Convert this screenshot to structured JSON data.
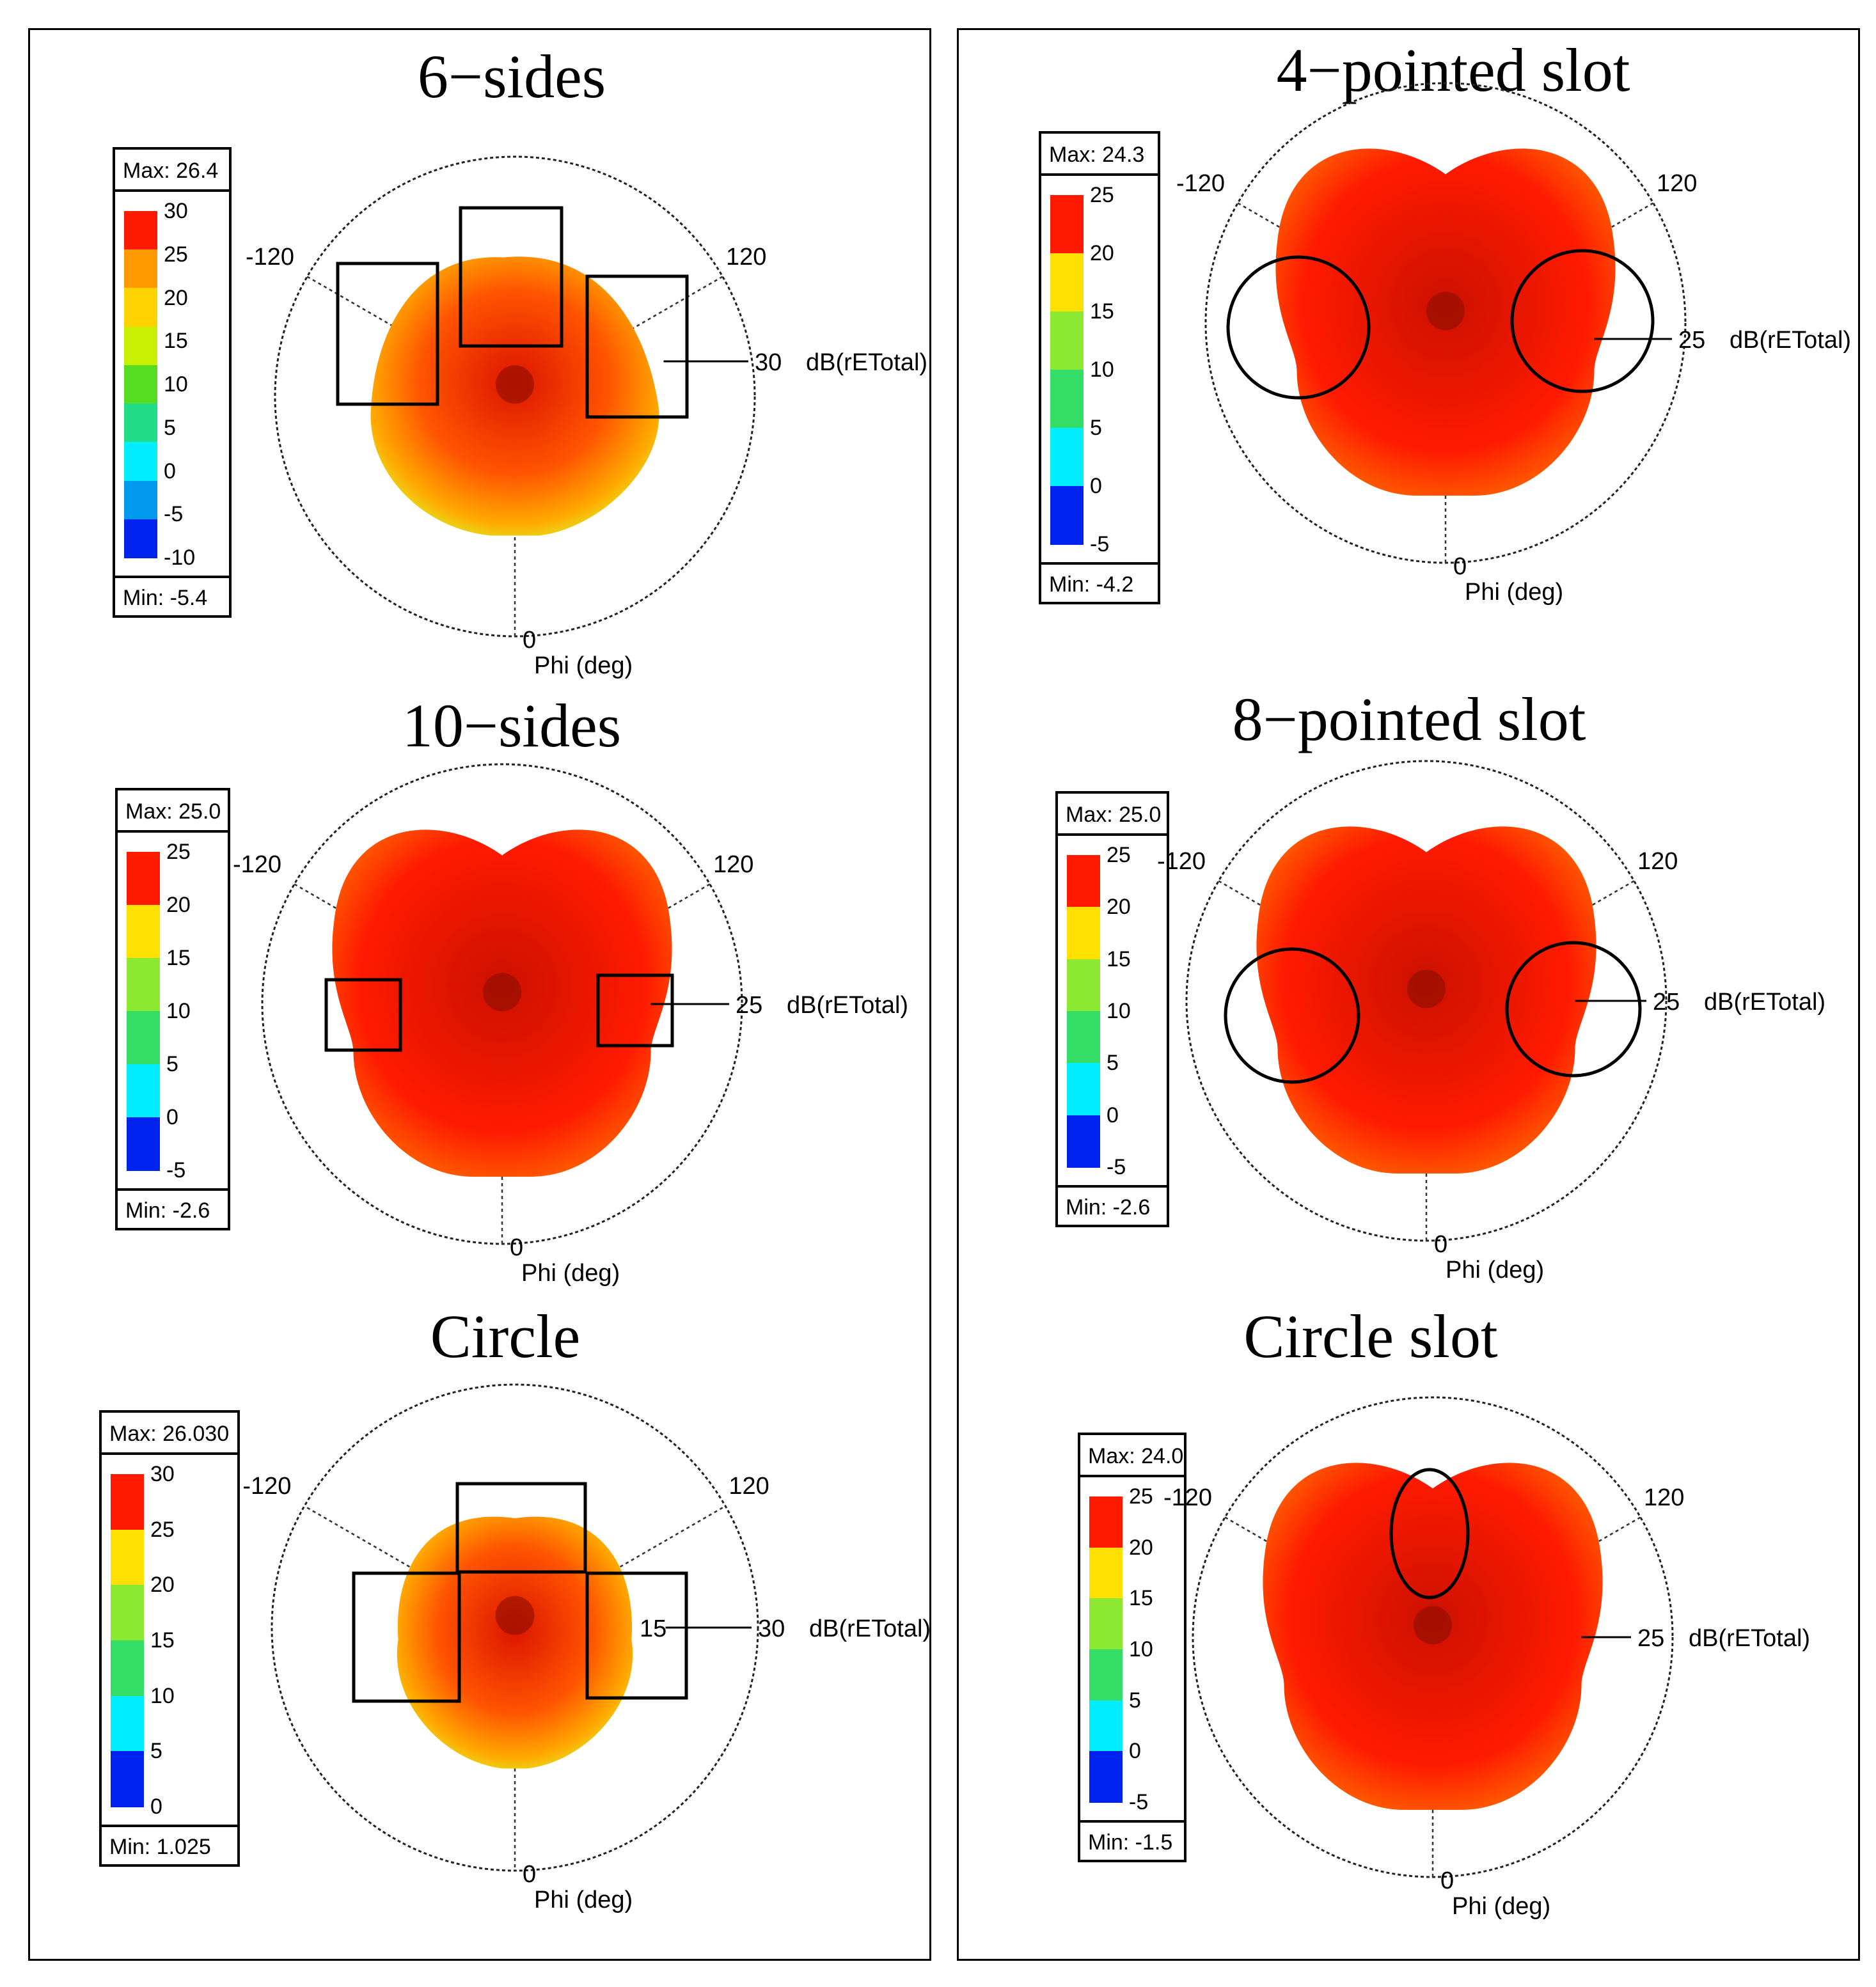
{
  "chart_data": [
    {
      "type": "polar-3d-pattern",
      "title": "6−sides",
      "legend": {
        "max_label": "Max: 26.4",
        "min_label": "Min: -5.4",
        "ticks": [
          "30",
          "25",
          "20",
          "15",
          "10",
          "5",
          "0",
          "-5",
          "-10"
        ],
        "colors": [
          "#ff1a00",
          "#ff9900",
          "#ffd200",
          "#c8f000",
          "#55dd22",
          "#22dd88",
          "#00eeff",
          "#0099ee",
          "#0022ee"
        ]
      },
      "angle_labels": [
        "-120",
        "120",
        "0"
      ],
      "radial_labels": [
        "30"
      ],
      "quantity_label": "dB(rETotal)",
      "axis_label": "Phi (deg)",
      "highlight": "rectangles",
      "pattern": "hex"
    },
    {
      "type": "polar-3d-pattern",
      "title": "4−pointed slot",
      "legend": {
        "max_label": "Max: 24.3",
        "min_label": "Min: -4.2",
        "ticks": [
          "25",
          "20",
          "15",
          "10",
          "5",
          "0",
          "-5"
        ],
        "colors": [
          "#ff1a00",
          "#ffe000",
          "#8ce830",
          "#33dd66",
          "#00eeff",
          "#0022ee"
        ]
      },
      "angle_labels": [
        "-120",
        "120",
        "0"
      ],
      "radial_labels": [
        "25"
      ],
      "quantity_label": "dB(rETotal)",
      "axis_label": "Phi (deg)",
      "highlight": "circles",
      "pattern": "slot4"
    },
    {
      "type": "polar-3d-pattern",
      "title": "10−sides",
      "legend": {
        "max_label": "Max: 25.0",
        "min_label": "Min: -2.6",
        "ticks": [
          "25",
          "20",
          "15",
          "10",
          "5",
          "0",
          "-5"
        ],
        "colors": [
          "#ff1a00",
          "#ffe000",
          "#8ce830",
          "#33dd66",
          "#00eeff",
          "#0022ee"
        ]
      },
      "angle_labels": [
        "-120",
        "120",
        "0"
      ],
      "radial_labels": [
        "25"
      ],
      "quantity_label": "dB(rETotal)",
      "axis_label": "Phi (deg)",
      "highlight": "rectangles",
      "pattern": "deca"
    },
    {
      "type": "polar-3d-pattern",
      "title": "8−pointed slot",
      "legend": {
        "max_label": "Max: 25.0",
        "min_label": "Min: -2.6",
        "ticks": [
          "25",
          "20",
          "15",
          "10",
          "5",
          "0",
          "-5"
        ],
        "colors": [
          "#ff1a00",
          "#ffe000",
          "#8ce830",
          "#33dd66",
          "#00eeff",
          "#0022ee"
        ]
      },
      "angle_labels": [
        "-120",
        "120",
        "0"
      ],
      "radial_labels": [
        "25"
      ],
      "quantity_label": "dB(rETotal)",
      "axis_label": "Phi (deg)",
      "highlight": "circles",
      "pattern": "slot8"
    },
    {
      "type": "polar-3d-pattern",
      "title": "Circle",
      "legend": {
        "max_label": "Max: 26.030",
        "min_label": "Min: 1.025",
        "ticks": [
          "30",
          "25",
          "20",
          "15",
          "10",
          "5",
          "0"
        ],
        "colors": [
          "#ff1a00",
          "#ffe000",
          "#8ce830",
          "#33dd66",
          "#00eeff",
          "#0022ee"
        ]
      },
      "angle_labels": [
        "-120",
        "120",
        "0"
      ],
      "radial_labels": [
        "15",
        "30"
      ],
      "quantity_label": "dB(rETotal)",
      "axis_label": "Phi (deg)",
      "highlight": "rectangles",
      "pattern": "circle"
    },
    {
      "type": "polar-3d-pattern",
      "title": "Circle slot",
      "legend": {
        "max_label": "Max: 24.0",
        "min_label": "Min: -1.5",
        "ticks": [
          "25",
          "20",
          "15",
          "10",
          "5",
          "0",
          "-5"
        ],
        "colors": [
          "#ff1a00",
          "#ffe000",
          "#8ce830",
          "#33dd66",
          "#00eeff",
          "#0022ee"
        ]
      },
      "angle_labels": [
        "-120",
        "120",
        "0"
      ],
      "radial_labels": [
        "25"
      ],
      "quantity_label": "dB(rETotal)",
      "axis_label": "Phi (deg)",
      "highlight": "ellipse",
      "pattern": "slotc"
    }
  ]
}
